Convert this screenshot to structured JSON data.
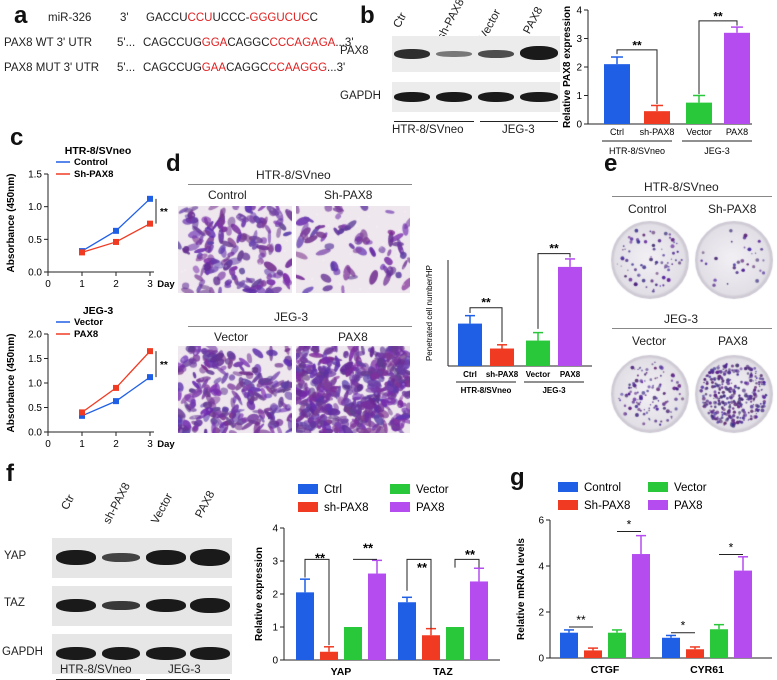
{
  "panel_labels": {
    "a": "a",
    "b": "b",
    "c": "c",
    "d": "d",
    "e": "e",
    "f": "f",
    "g": "g"
  },
  "panel_a": {
    "rows": [
      {
        "label": "miR-326",
        "prime": "3'",
        "seq": [
          {
            "t": "GACCU",
            "r": false
          },
          {
            "t": "CCU",
            "r": true
          },
          {
            "t": "UCCC-",
            "r": false
          },
          {
            "t": "GGGUCUC",
            "r": true
          },
          {
            "t": "C",
            "r": false
          }
        ]
      },
      {
        "label": "PAX8 WT  3' UTR",
        "prime": "5'...",
        "seq": [
          {
            "t": "CAGCCUG",
            "r": false
          },
          {
            "t": "GGA",
            "r": true
          },
          {
            "t": "CAGGC",
            "r": false
          },
          {
            "t": "CCCAGAGA",
            "r": true
          },
          {
            "t": "...3'",
            "r": false
          }
        ]
      },
      {
        "label": "PAX8 MUT 3' UTR",
        "prime": "5'...",
        "seq": [
          {
            "t": "CAGCCUG",
            "r": false
          },
          {
            "t": "GAA",
            "r": true
          },
          {
            "t": "CAGGC",
            "r": false
          },
          {
            "t": "CCAAGGG",
            "r": true
          },
          {
            "t": "...3'",
            "r": false
          }
        ]
      }
    ]
  },
  "panel_b": {
    "lanes": [
      "Ctr",
      "sh-PAX8",
      "Vector",
      "PAX8"
    ],
    "blots": [
      "PAX8",
      "GAPDH"
    ],
    "groups": [
      "HTR-8/SVneo",
      "JEG-3"
    ]
  },
  "panel_c": {
    "top_title": "HTR-8/SVneo",
    "bottom_title": "JEG-3",
    "ylabel": "Absorbance (450nm)",
    "xunit": "Day",
    "sig": "**"
  },
  "panel_d": {
    "top_title": "HTR-8/SVneo",
    "top_labels": [
      "Control",
      "Sh-PAX8"
    ],
    "bottom_title": "JEG-3",
    "bottom_labels": [
      "Vector",
      "PAX8"
    ]
  },
  "panel_e": {
    "top_title": "HTR-8/SVneo",
    "top_labels": [
      "Control",
      "Sh-PAX8"
    ],
    "bottom_title": "JEG-3",
    "bottom_labels": [
      "Vector",
      "PAX8"
    ]
  },
  "panel_f": {
    "lanes": [
      "Ctr",
      "sh-PAX8",
      "Vector",
      "PAX8"
    ],
    "blots": [
      "YAP",
      "TAZ",
      "GAPDH"
    ],
    "groups": [
      "HTR-8/SVneo",
      "JEG-3"
    ]
  },
  "colors": {
    "ctrl": "#1f5fe6",
    "sh": "#f03a22",
    "vector": "#28c83a",
    "pax8": "#b44cf0"
  },
  "chart_data": [
    {
      "id": "b",
      "type": "bar",
      "categories": [
        "Ctrl",
        "sh-PAX8",
        "Vector",
        "PAX8"
      ],
      "values": [
        2.1,
        0.45,
        0.75,
        3.2
      ],
      "errors": [
        0.25,
        0.2,
        0.25,
        0.2
      ],
      "ylabel": "Relative PAX8 expression",
      "ylim": [
        0,
        4
      ],
      "yticks": [
        0,
        1,
        2,
        3,
        4
      ],
      "groups": [
        "HTR-8/SVneo",
        "JEG-3"
      ],
      "sig": [
        "**",
        "**"
      ]
    },
    {
      "id": "c_top",
      "type": "line",
      "x": [
        1,
        2,
        3
      ],
      "xticks": [
        0,
        1,
        2,
        3
      ],
      "xlabel": "Day",
      "ylabel": "Absorbance (450nm)",
      "ylim": [
        0,
        1.5
      ],
      "yticks": [
        0.0,
        0.5,
        1.0,
        1.5
      ],
      "series": [
        {
          "name": "Control",
          "values": [
            0.32,
            0.63,
            1.12
          ]
        },
        {
          "name": "Sh-PAX8",
          "values": [
            0.3,
            0.46,
            0.74
          ]
        }
      ],
      "sig": "**"
    },
    {
      "id": "c_bottom",
      "type": "line",
      "x": [
        1,
        2,
        3
      ],
      "xticks": [
        0,
        1,
        2,
        3
      ],
      "xlabel": "Day",
      "ylabel": "Absorbance (450nm)",
      "ylim": [
        0,
        2.0
      ],
      "yticks": [
        0.0,
        0.5,
        1.0,
        1.5,
        2.0
      ],
      "series": [
        {
          "name": "Vector",
          "values": [
            0.33,
            0.63,
            1.12
          ]
        },
        {
          "name": "PAX8",
          "values": [
            0.4,
            0.9,
            1.65
          ]
        }
      ],
      "sig": "**"
    },
    {
      "id": "d",
      "type": "bar",
      "categories": [
        "Ctrl",
        "sh-PAX8",
        "Vector",
        "PAX8"
      ],
      "values": [
        80,
        33,
        48,
        187
      ],
      "errors": [
        15,
        7,
        15,
        15
      ],
      "ylabel": "Penetrated cell number/HP",
      "ylim": [
        0,
        200
      ],
      "groups": [
        "HTR-8/SVneo",
        "JEG-3"
      ],
      "sig": [
        "**",
        "**"
      ]
    },
    {
      "id": "f",
      "type": "bar",
      "categories": [
        "YAP",
        "TAZ"
      ],
      "ylabel": "Relative expression",
      "ylim": [
        0,
        4
      ],
      "yticks": [
        0,
        1,
        2,
        3,
        4
      ],
      "series": [
        {
          "name": "Ctrl",
          "values": [
            2.05,
            1.75
          ],
          "errors": [
            0.4,
            0.15
          ]
        },
        {
          "name": "sh-PAX8",
          "values": [
            0.25,
            0.75
          ],
          "errors": [
            0.15,
            0.2
          ]
        },
        {
          "name": "Vector",
          "values": [
            1.0,
            1.0
          ],
          "errors": [
            0,
            0
          ]
        },
        {
          "name": "PAX8",
          "values": [
            2.62,
            2.38
          ],
          "errors": [
            0.4,
            0.4
          ]
        }
      ],
      "sig": [
        "**",
        "**",
        "**",
        "**"
      ]
    },
    {
      "id": "g",
      "type": "bar",
      "categories": [
        "CTGF",
        "CYR61"
      ],
      "ylabel": "Relative mRNA levels",
      "ylim": [
        0,
        6
      ],
      "yticks": [
        0,
        2,
        4,
        6
      ],
      "series": [
        {
          "name": "Control",
          "values": [
            1.1,
            0.88
          ],
          "errors": [
            0.12,
            0.1
          ]
        },
        {
          "name": "Sh-PAX8",
          "values": [
            0.33,
            0.38
          ],
          "errors": [
            0.1,
            0.1
          ]
        },
        {
          "name": "Vector",
          "values": [
            1.1,
            1.25
          ],
          "errors": [
            0.12,
            0.2
          ]
        },
        {
          "name": "PAX8",
          "values": [
            4.52,
            3.8
          ],
          "errors": [
            0.8,
            0.6
          ]
        }
      ],
      "sig": [
        "**",
        "*",
        "*",
        "*"
      ]
    }
  ]
}
